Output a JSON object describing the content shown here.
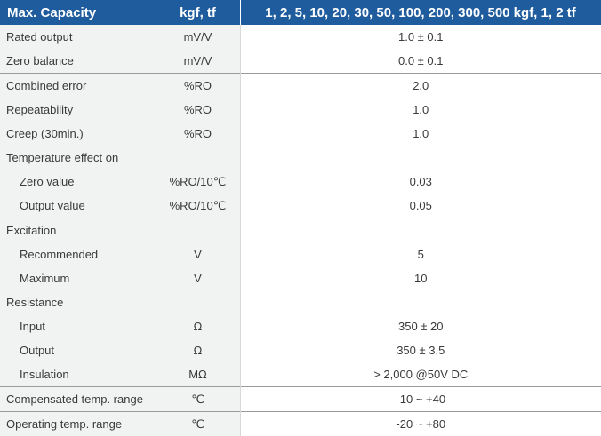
{
  "table": {
    "header": [
      "Max. Capacity",
      "kgf, tf",
      "1, 2, 5, 10, 20, 30, 50, 100, 200, 300, 500 kgf, 1, 2 tf"
    ],
    "rows": [
      [
        "Rated output",
        "mV/V",
        "1.0 ± 0.1"
      ],
      [
        "Zero balance",
        "mV/V",
        "0.0 ± 0.1"
      ],
      [
        "Combined error",
        "%RO",
        "2.0"
      ],
      [
        "Repeatability",
        "%RO",
        "1.0"
      ],
      [
        "Creep (30min.)",
        "%RO",
        "1.0"
      ],
      [
        "Temperature effect on",
        null,
        null
      ],
      [
        "Zero value",
        "%RO/10℃",
        "0.03"
      ],
      [
        "Output  value",
        "%RO/10℃",
        "0.05"
      ],
      [
        "Excitation",
        null,
        null
      ],
      [
        "Recommended",
        "V",
        "5"
      ],
      [
        "Maximum",
        "V",
        "10"
      ],
      [
        "Resistance",
        null,
        null
      ],
      [
        "Input",
        "Ω",
        "350 ± 20"
      ],
      [
        "Output",
        "Ω",
        "350 ± 3.5"
      ],
      [
        "Insulation",
        "MΩ",
        "> 2,000 @50V DC"
      ],
      [
        "Compensated temp. range",
        "℃",
        "-10 ~ +40"
      ],
      [
        "Operating temp. range",
        "℃",
        "-20 ~ +80"
      ]
    ]
  }
}
